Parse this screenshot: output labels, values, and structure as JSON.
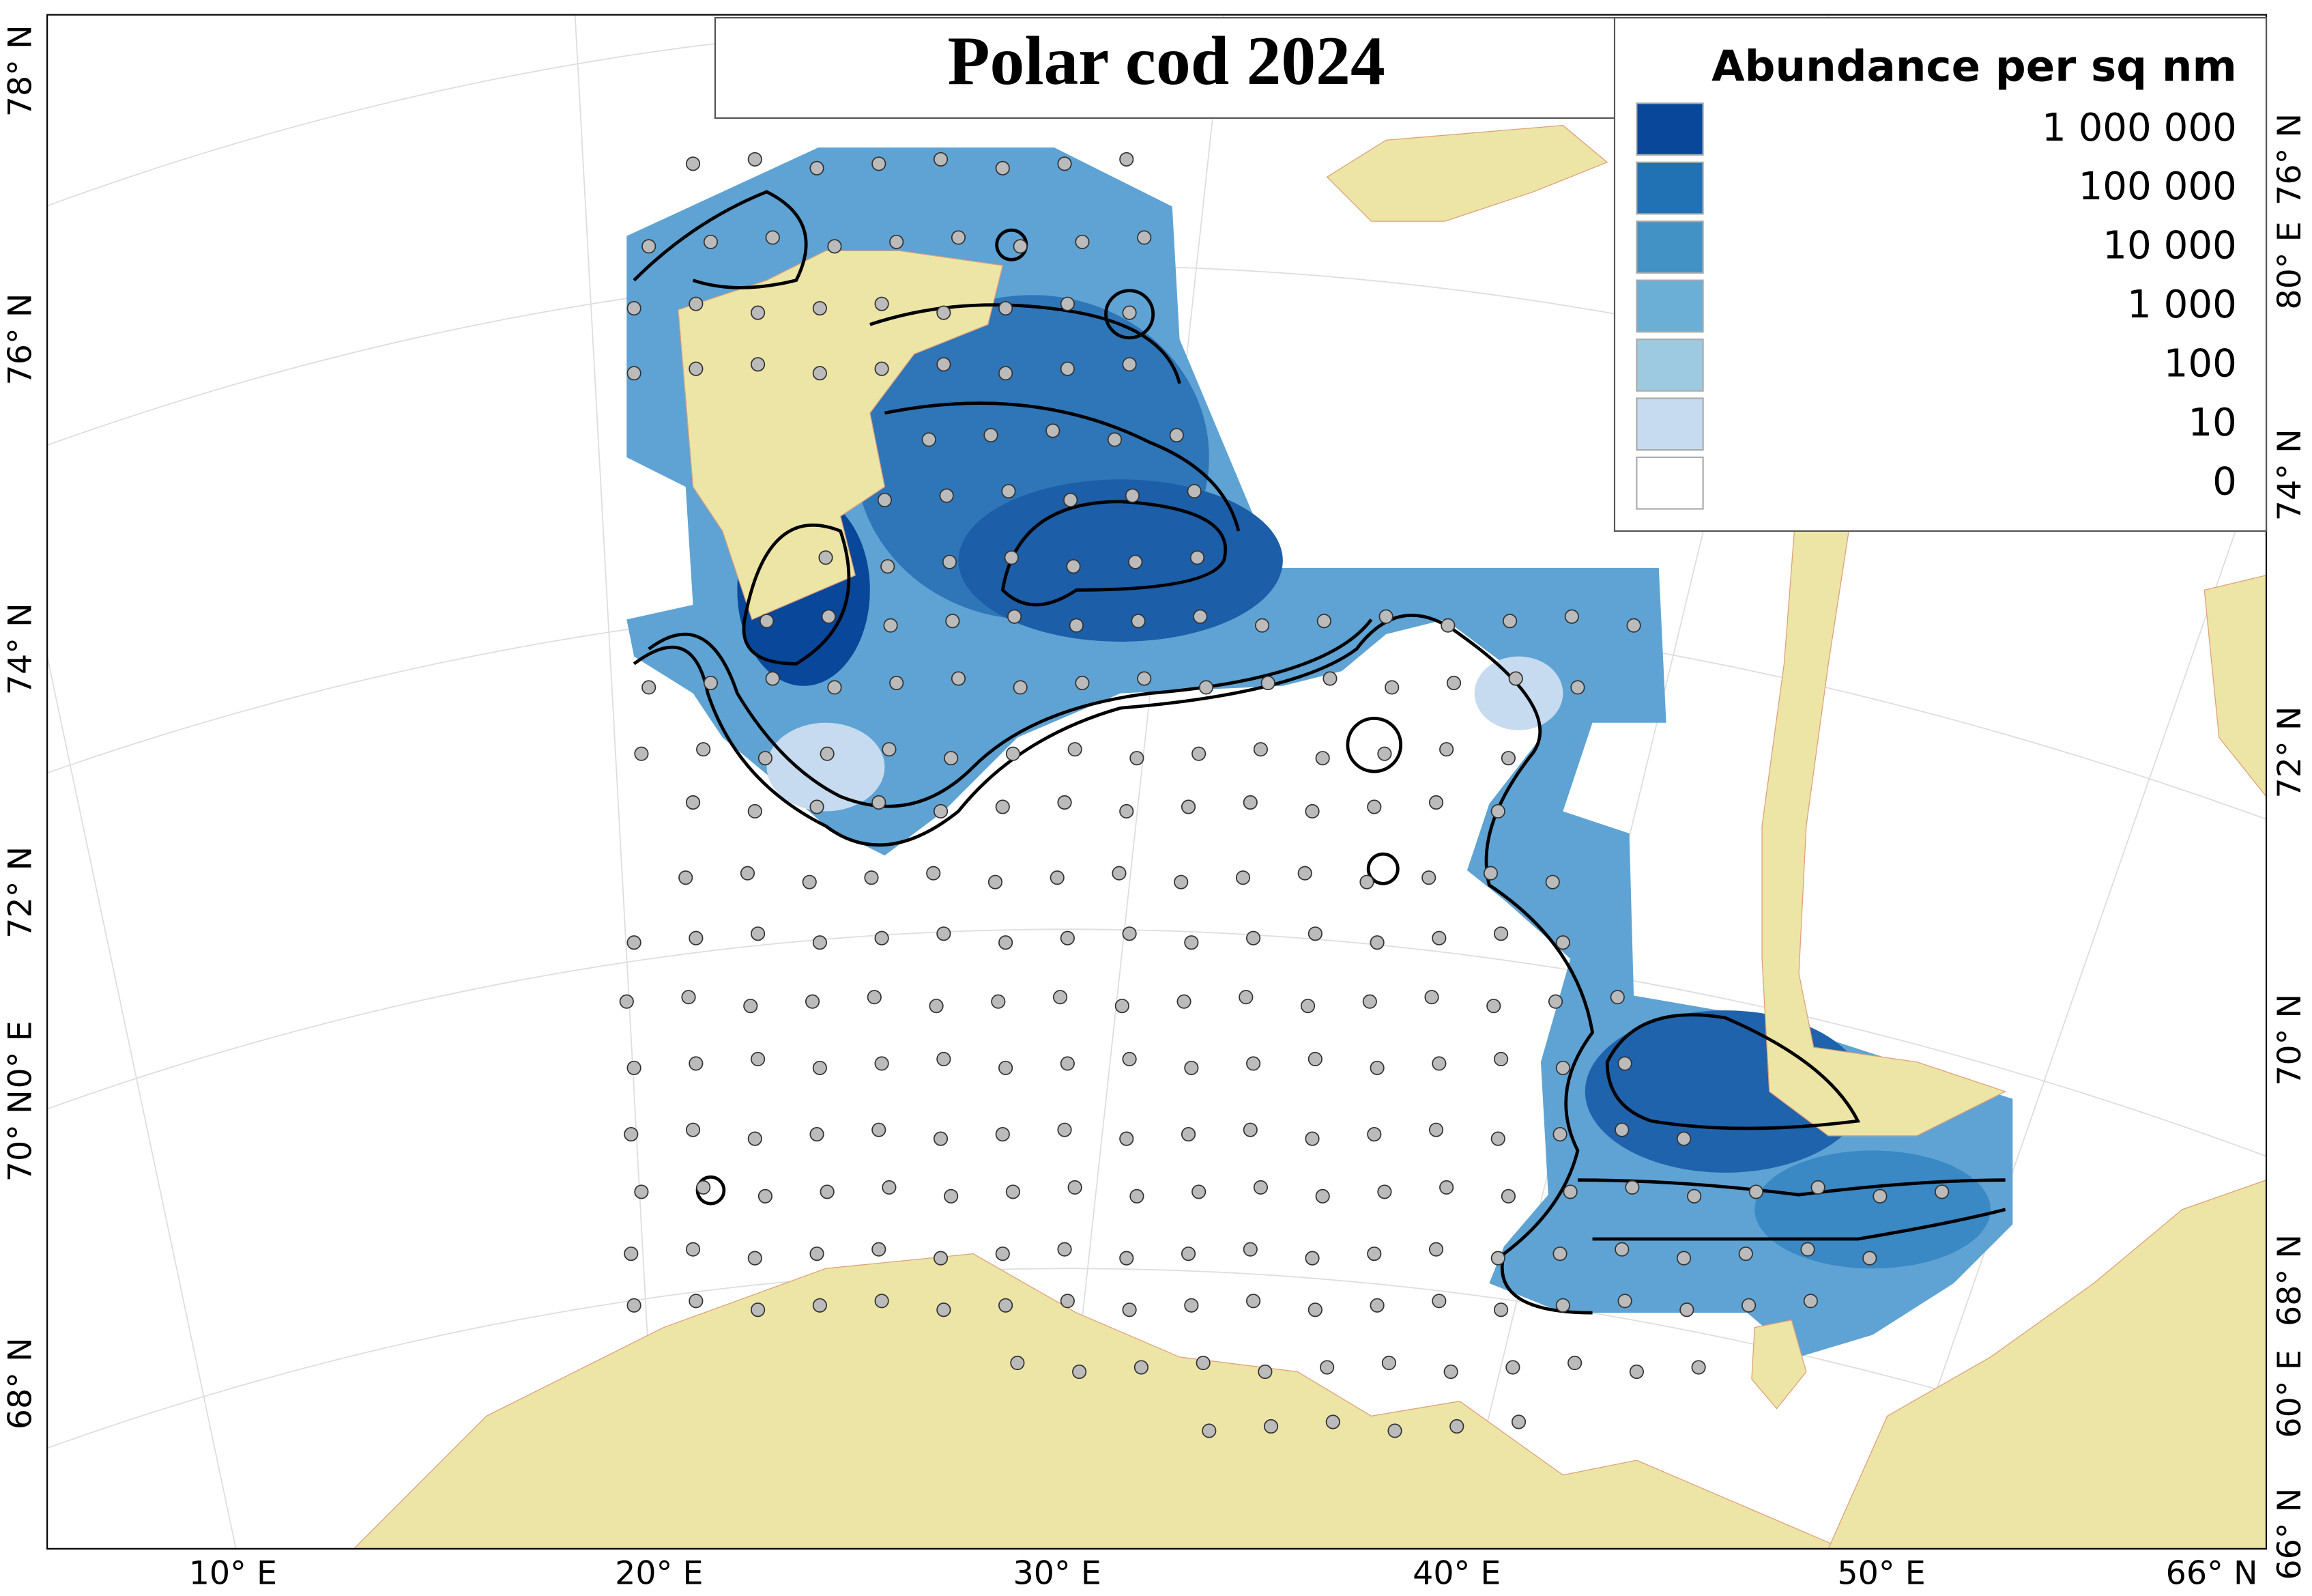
{
  "header": {
    "title": "Polar cod 2024"
  },
  "legend": {
    "title": "Abundance per sq nm",
    "items": [
      {
        "label": "1 000 000",
        "color": "#08479a"
      },
      {
        "label": "100 000",
        "color": "#2171b5"
      },
      {
        "label": "10 000",
        "color": "#4292c6"
      },
      {
        "label": "1 000",
        "color": "#6baed6"
      },
      {
        "label": "100",
        "color": "#9ecae1"
      },
      {
        "label": "10",
        "color": "#c6dbef"
      },
      {
        "label": "0",
        "color": "#ffffff"
      }
    ]
  },
  "axes": {
    "bottom": [
      "10° E",
      "20° E",
      "30° E",
      "40° E",
      "50° E",
      "66° N"
    ],
    "left": [
      "78° N",
      "76° N",
      "74° N",
      "72° N",
      "0° E",
      "70° N",
      "68° N"
    ],
    "right": [
      "76° N",
      "80° E",
      "74° N",
      "72° N",
      "70° N",
      "68° N",
      "60° E",
      "66° N"
    ]
  }
}
